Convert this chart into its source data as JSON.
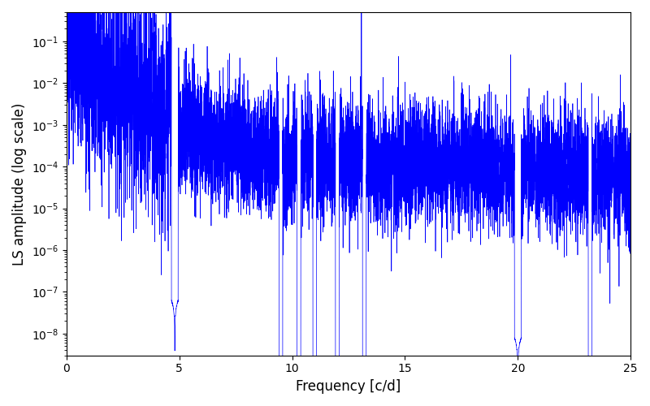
{
  "xlabel": "Frequency [c/d]",
  "ylabel": "LS amplitude (log scale)",
  "line_color": "#0000ff",
  "xlim": [
    0,
    25
  ],
  "ylim": [
    3e-09,
    0.5
  ],
  "freq_max": 25.0,
  "n_points": 8000,
  "background_color": "#ffffff",
  "figsize": [
    8.0,
    5.0
  ],
  "dpi": 100
}
